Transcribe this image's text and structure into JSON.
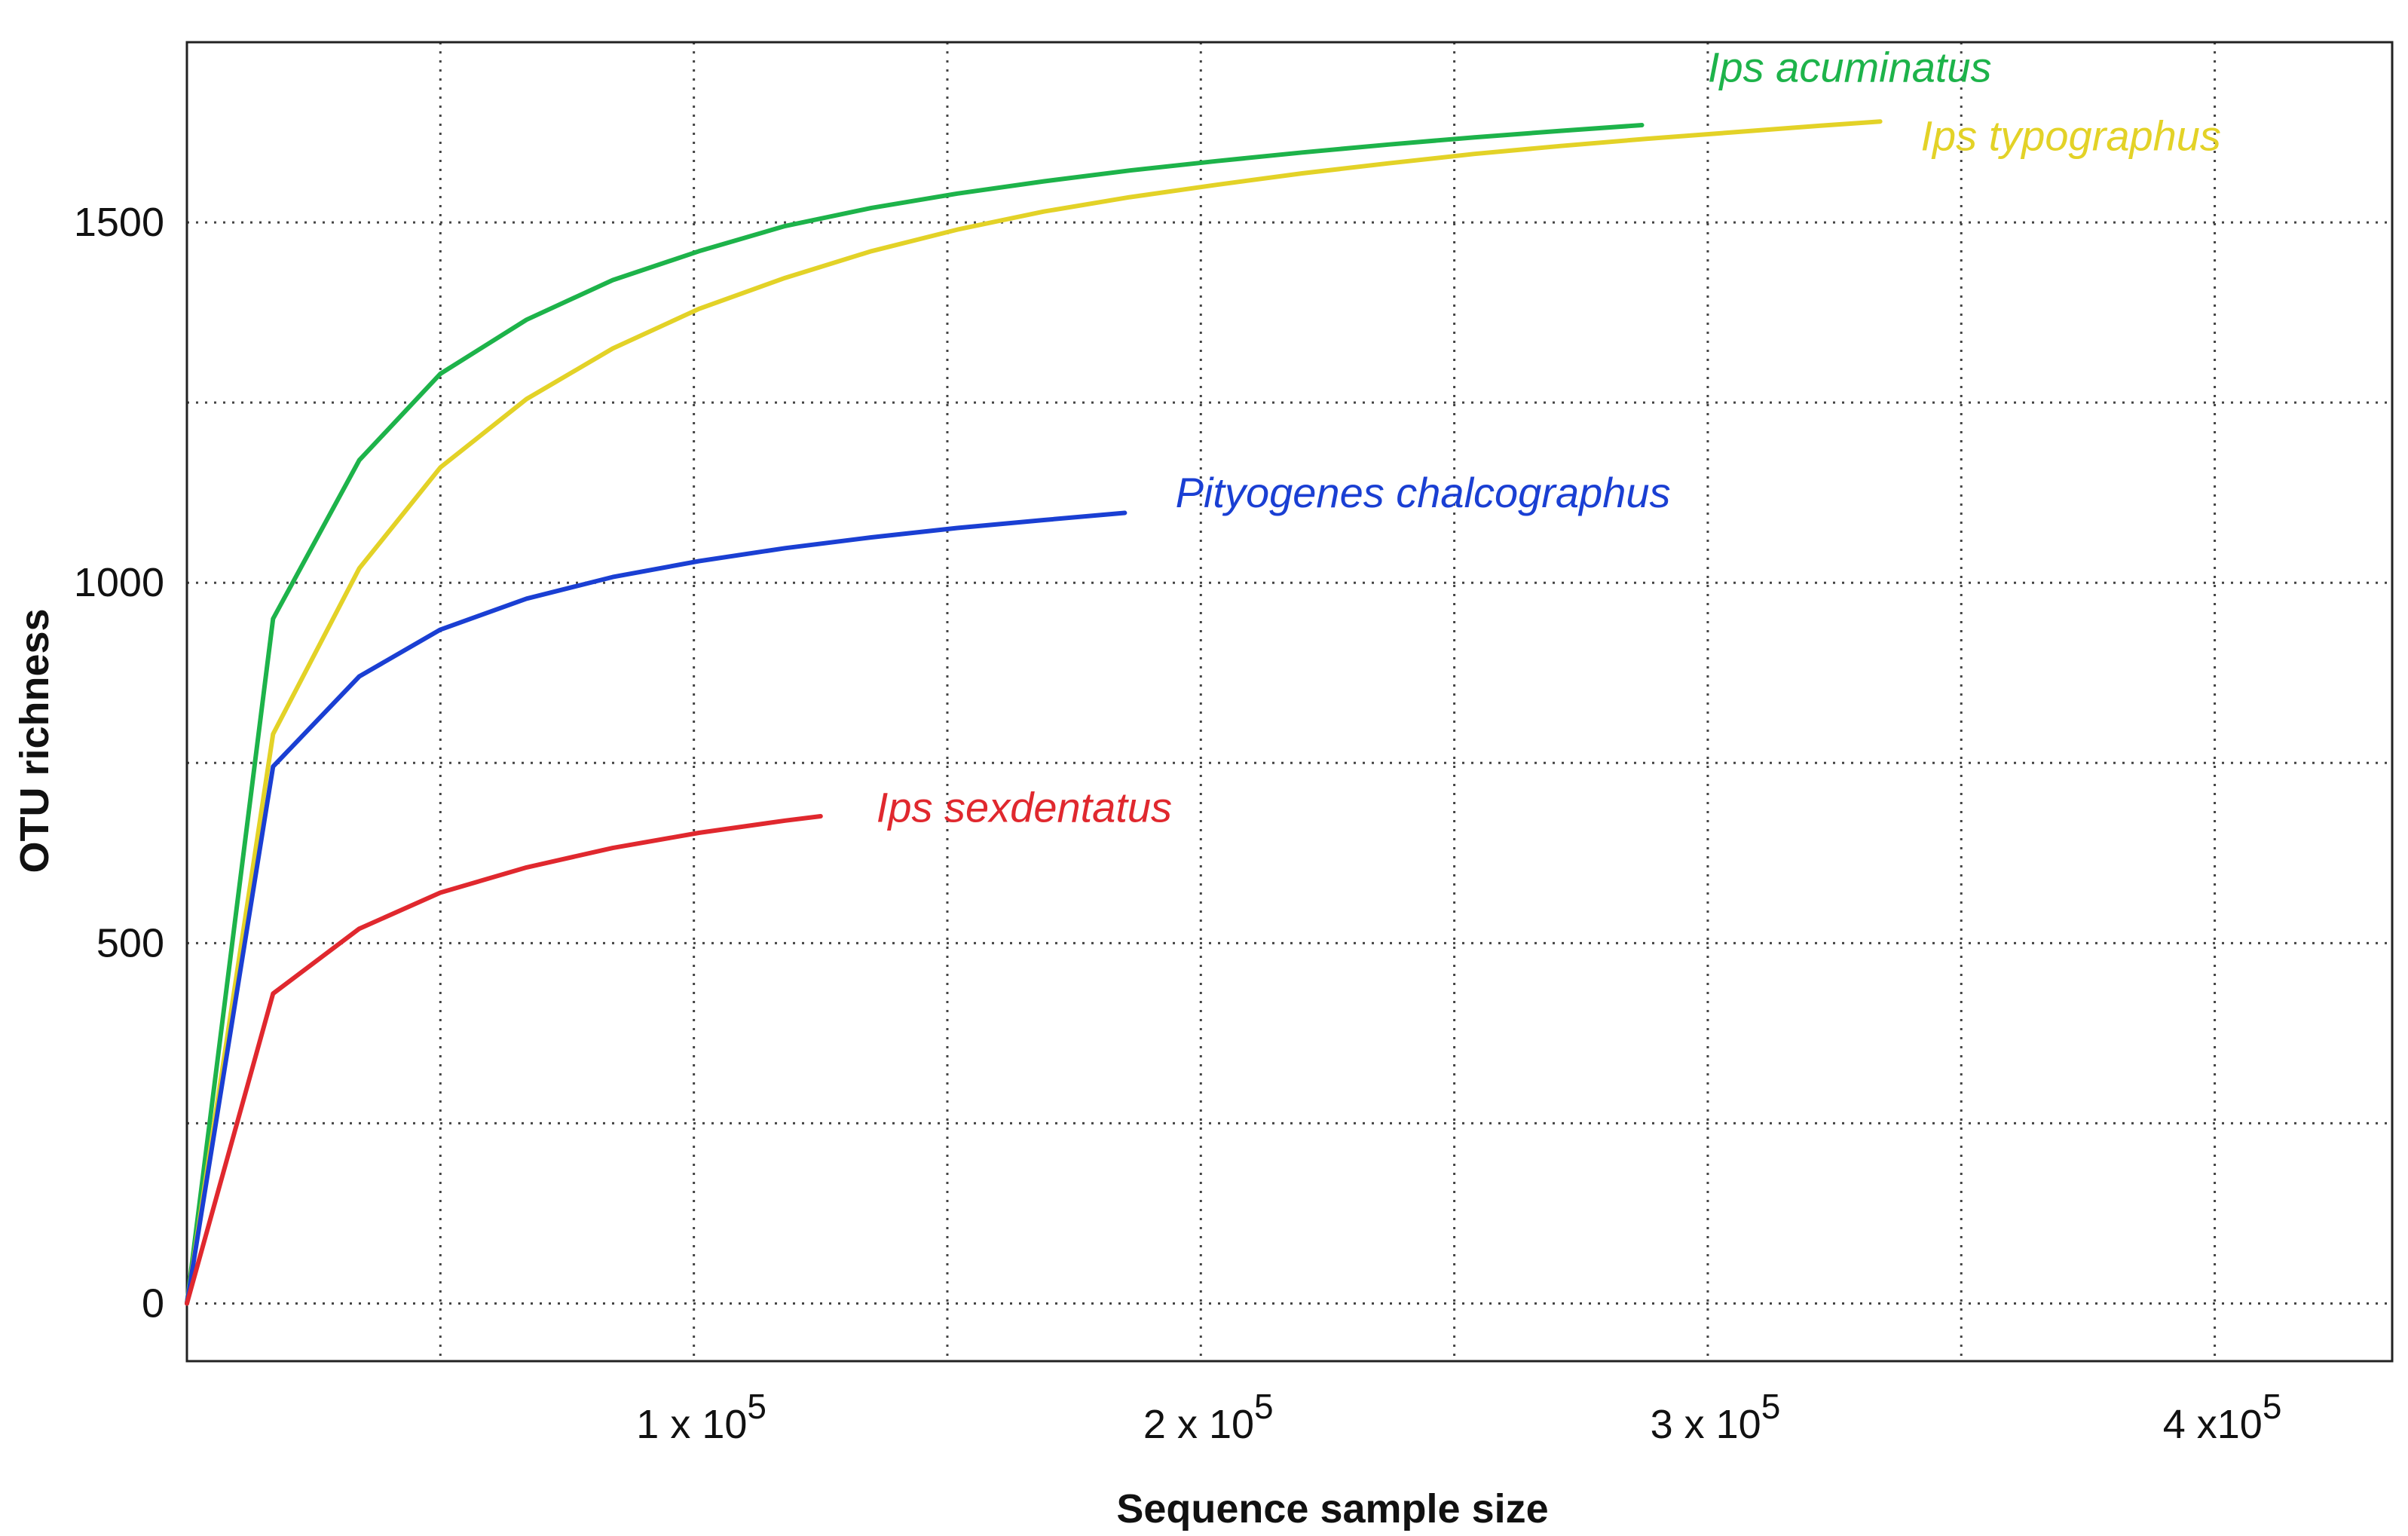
{
  "chart_data": {
    "type": "line",
    "title": "",
    "xlabel": "Sequence sample size",
    "ylabel": "OTU richness",
    "xlim": [
      0,
      435000
    ],
    "ylim": [
      -80,
      1750
    ],
    "grid": true,
    "y_ticks": [
      {
        "value": 0,
        "label": "0"
      },
      {
        "value": 500,
        "label": "500"
      },
      {
        "value": 1000,
        "label": "1000"
      },
      {
        "value": 1500,
        "label": "1500"
      }
    ],
    "y_minor_ticks": [
      250,
      750,
      1250
    ],
    "x_ticks": [
      {
        "value": 100000,
        "mantissa": "1 x 10",
        "exponent": "5"
      },
      {
        "value": 200000,
        "mantissa": "2 x 10",
        "exponent": "5"
      },
      {
        "value": 300000,
        "mantissa": "3 x 10",
        "exponent": "5"
      },
      {
        "value": 400000,
        "mantissa": "4 x10",
        "exponent": "5"
      }
    ],
    "x_minor_ticks": [
      50000,
      150000,
      250000,
      350000
    ],
    "series": [
      {
        "name": "Ips acuminatus",
        "color": "#1db34a",
        "label_anchor": [
          300000,
          1695
        ],
        "x": [
          0,
          17000,
          34000,
          50000,
          67000,
          84000,
          101000,
          118000,
          135000,
          152000,
          169000,
          186000,
          203000,
          220000,
          237000,
          254000,
          271000,
          287000
        ],
        "values": [
          0,
          950,
          1170,
          1290,
          1365,
          1420,
          1460,
          1495,
          1520,
          1540,
          1557,
          1572,
          1585,
          1597,
          1608,
          1618,
          1627,
          1635
        ]
      },
      {
        "name": "Ips typographus",
        "color": "#e3d227",
        "label_anchor": [
          342000,
          1600
        ],
        "x": [
          0,
          17000,
          34000,
          50000,
          67000,
          84000,
          101000,
          118000,
          135000,
          152000,
          169000,
          186000,
          203000,
          220000,
          237000,
          254000,
          271000,
          288000,
          305000,
          322000,
          334000
        ],
        "values": [
          0,
          790,
          1020,
          1160,
          1255,
          1325,
          1380,
          1423,
          1460,
          1490,
          1515,
          1535,
          1552,
          1568,
          1582,
          1595,
          1606,
          1616,
          1625,
          1634,
          1640
        ]
      },
      {
        "name": "Pityogenes chalcographus",
        "color": "#1a3fd3",
        "label_anchor": [
          195000,
          1105
        ],
        "x": [
          0,
          17000,
          34000,
          50000,
          67000,
          84000,
          101000,
          118000,
          135000,
          152000,
          169000,
          185000
        ],
        "values": [
          0,
          745,
          870,
          935,
          978,
          1008,
          1030,
          1048,
          1063,
          1076,
          1087,
          1097
        ]
      },
      {
        "name": "Ips sexdentatus",
        "color": "#e0282e",
        "label_anchor": [
          136000,
          668
        ],
        "x": [
          0,
          17000,
          34000,
          50000,
          67000,
          84000,
          101000,
          118000,
          125000
        ],
        "values": [
          0,
          430,
          520,
          570,
          605,
          632,
          653,
          670,
          676
        ]
      }
    ]
  }
}
